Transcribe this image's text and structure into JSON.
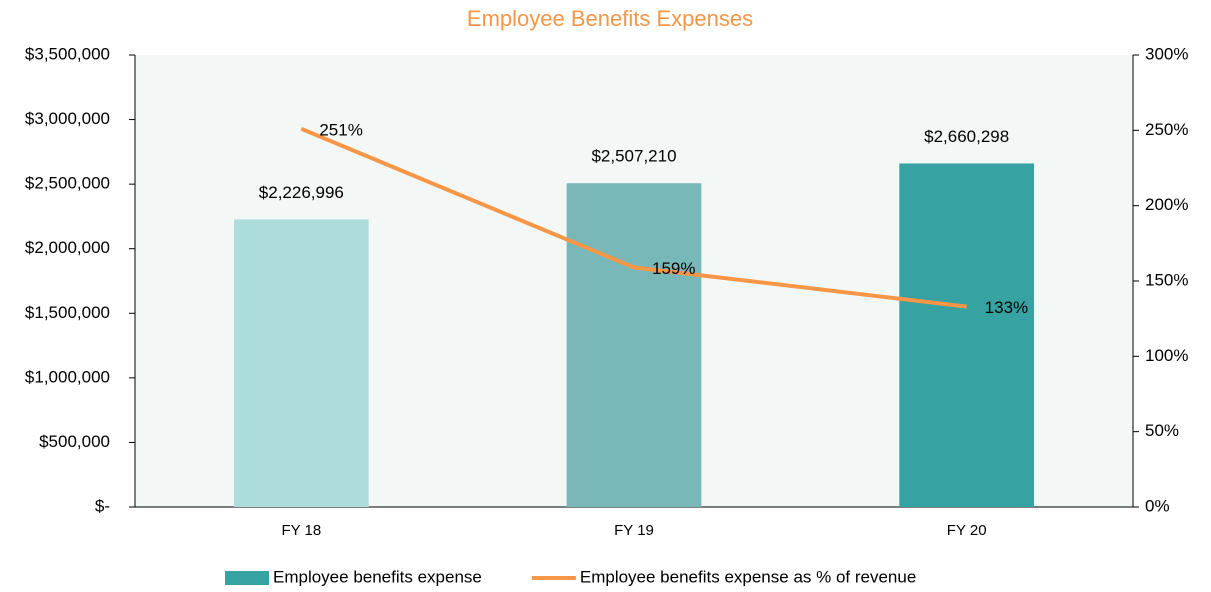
{
  "chart_data": {
    "type": "bar_line",
    "title": "Employee Benefits Expenses",
    "categories": [
      "FY 18",
      "FY 19",
      "FY 20"
    ],
    "series": [
      {
        "name": "Employee benefits expense",
        "type": "bar",
        "color": "#36a2a2",
        "colors": [
          "#acdcdc",
          "#78b8b8",
          "#36a2a2"
        ],
        "values": [
          2226996,
          2507210,
          2660298
        ],
        "value_labels": [
          "$2,226,996",
          "$2,507,210",
          "$2,660,298"
        ]
      },
      {
        "name": "Employee benefits expense as % of revenue",
        "type": "line",
        "axis": "y2",
        "color": "#f79646",
        "values": [
          251,
          159,
          133
        ],
        "value_labels": [
          "251%",
          "159%",
          "133%"
        ]
      }
    ],
    "ylim": [
      0,
      3500000
    ],
    "yticks": [
      {
        "value": 0,
        "label": "$-"
      },
      {
        "value": 500000,
        "label": "$500,000"
      },
      {
        "value": 1000000,
        "label": "$1,000,000"
      },
      {
        "value": 1500000,
        "label": "$1,500,000"
      },
      {
        "value": 2000000,
        "label": "$2,000,000"
      },
      {
        "value": 2500000,
        "label": "$2,500,000"
      },
      {
        "value": 3000000,
        "label": "$3,000,000"
      },
      {
        "value": 3500000,
        "label": "$3,500,000"
      }
    ],
    "y2lim": [
      0,
      300
    ],
    "y2ticks": [
      {
        "value": 0,
        "label": "0%"
      },
      {
        "value": 50,
        "label": "50%"
      },
      {
        "value": 100,
        "label": "100%"
      },
      {
        "value": 150,
        "label": "150%"
      },
      {
        "value": 200,
        "label": "200%"
      },
      {
        "value": 250,
        "label": "250%"
      },
      {
        "value": 300,
        "label": "300%"
      }
    ],
    "grid": false,
    "legend": "bottom"
  }
}
